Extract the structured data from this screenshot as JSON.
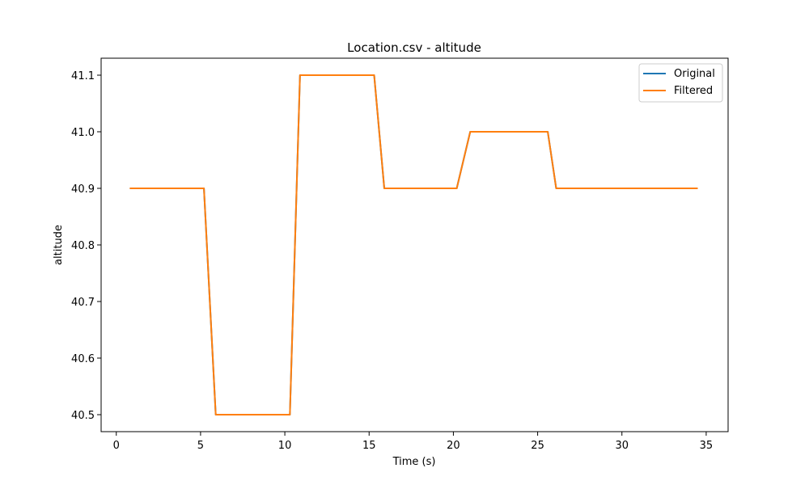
{
  "chart_data": {
    "type": "line",
    "title": "Location.csv - altitude",
    "xlabel": "Time (s)",
    "ylabel": "altitude",
    "xlim": [
      -0.9,
      36.3
    ],
    "ylim": [
      40.47,
      41.13
    ],
    "x_ticks": [
      0,
      5,
      10,
      15,
      20,
      25,
      30,
      35
    ],
    "y_ticks": [
      40.5,
      40.6,
      40.7,
      40.8,
      40.9,
      41.0,
      41.1
    ],
    "x_tick_labels": [
      "0",
      "5",
      "10",
      "15",
      "20",
      "25",
      "30",
      "35"
    ],
    "y_tick_labels": [
      "40.5",
      "40.6",
      "40.7",
      "40.8",
      "40.9",
      "41.0",
      "41.1"
    ],
    "grid": false,
    "legend_position": "top-right",
    "series": [
      {
        "name": "Original",
        "color": "#1f77b4",
        "x": [
          0.8,
          5.2,
          5.9,
          10.3,
          10.9,
          15.3,
          15.9,
          20.2,
          21.0,
          25.6,
          26.1,
          34.5
        ],
        "y": [
          40.9,
          40.9,
          40.5,
          40.5,
          41.1,
          41.1,
          40.9,
          40.9,
          41.0,
          41.0,
          40.9,
          40.9
        ]
      },
      {
        "name": "Filtered",
        "color": "#ff7f0e",
        "x": [
          0.8,
          5.2,
          5.9,
          10.3,
          10.9,
          15.3,
          15.9,
          20.2,
          21.0,
          25.6,
          26.1,
          34.5
        ],
        "y": [
          40.9,
          40.9,
          40.5,
          40.5,
          41.1,
          41.1,
          40.9,
          40.9,
          41.0,
          41.0,
          40.9,
          40.9
        ]
      }
    ]
  }
}
